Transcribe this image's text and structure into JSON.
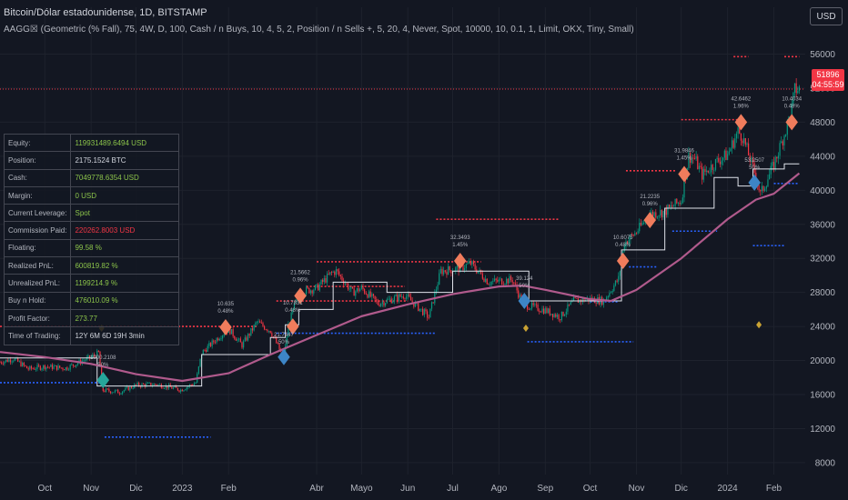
{
  "header": {
    "title": "Bitcoin/Dólar estadounidense, 1D, BITSTAMP",
    "indicator": "AAGG☒ (Geometric (% Fall), 75, 4W, D, 100, Cash / n Buys, 10, 4, 5, 2, Position / n Sells +, 5, 20, 4, Never, Spot, 10000, 10, 0.1, 1, Limit, OKX, Tiny, Small)",
    "currency_button": "USD"
  },
  "price_tag": {
    "price": "51896",
    "countdown": "04:55:59"
  },
  "stats": [
    {
      "label": "Equity:",
      "value": "119931489.6494 USD",
      "color": "#8bc34a"
    },
    {
      "label": "Position:",
      "value": "2175.1524 BTC",
      "color": "#d1d4dc"
    },
    {
      "label": "Cash:",
      "value": "7049778.6354 USD",
      "color": "#8bc34a"
    },
    {
      "label": "Margin:",
      "value": "0 USD",
      "color": "#8bc34a"
    },
    {
      "label": "Current Leverage:",
      "value": "Spot",
      "color": "#8bc34a"
    },
    {
      "label": "Commission Paid:",
      "value": "220262.8003 USD",
      "color": "#f23645"
    },
    {
      "label": "Floating:",
      "value": "99.58 %",
      "color": "#8bc34a"
    },
    {
      "label": "Realized PnL:",
      "value": "600819.82 %",
      "color": "#8bc34a"
    },
    {
      "label": "Unrealized PnL:",
      "value": "1199214.9 %",
      "color": "#8bc34a"
    },
    {
      "label": "Buy n Hold:",
      "value": "476010.09 %",
      "color": "#8bc34a"
    },
    {
      "label": "Profit Factor:",
      "value": "273.77",
      "color": "#8bc34a"
    },
    {
      "label": "Time of Trading:",
      "value": "12Y 6M 6D 19H 3min",
      "color": "#d1d4dc"
    }
  ],
  "colors": {
    "up": "#089981",
    "down": "#f23645",
    "ma": "#b05a8c",
    "step": "#e0e3eb",
    "sell_diamond": "#f07c5c",
    "buy_diamond": "#3d85c6",
    "first_buy_diamond": "#26a69a",
    "small_diamond": "#c9a233",
    "sell_level": "#f23645",
    "buy_level": "#2962ff",
    "grid": "#1e222d",
    "axis_text": "#b2b5be"
  },
  "chart_data": {
    "type": "candlestick",
    "y_axis_ticks": [
      8000,
      12000,
      16000,
      20000,
      24000,
      28000,
      32000,
      36000,
      40000,
      44000,
      48000,
      52000,
      56000
    ],
    "ylim": [
      6600,
      58300
    ],
    "x_axis_labels": [
      {
        "label": "Oct",
        "date": "2022-10-01"
      },
      {
        "label": "Nov",
        "date": "2022-11-01"
      },
      {
        "label": "Dic",
        "date": "2022-12-01"
      },
      {
        "label": "2023",
        "date": "2023-01-01"
      },
      {
        "label": "Feb",
        "date": "2023-02-01"
      },
      {
        "label": "Abr",
        "date": "2023-04-01"
      },
      {
        "label": "Mayo",
        "date": "2023-05-01"
      },
      {
        "label": "Jun",
        "date": "2023-06-01"
      },
      {
        "label": "Jul",
        "date": "2023-07-01"
      },
      {
        "label": "Ago",
        "date": "2023-08-01"
      },
      {
        "label": "Sep",
        "date": "2023-09-01"
      },
      {
        "label": "Oct",
        "date": "2023-10-01"
      },
      {
        "label": "Nov",
        "date": "2023-11-01"
      },
      {
        "label": "Dic",
        "date": "2023-12-01"
      },
      {
        "label": "2024",
        "date": "2024-01-01"
      },
      {
        "label": "Feb",
        "date": "2024-02-01"
      }
    ],
    "close_series": [
      [
        "2022-09-01",
        19800
      ],
      [
        "2022-09-10",
        20200
      ],
      [
        "2022-09-20",
        19000
      ],
      [
        "2022-10-01",
        19300
      ],
      [
        "2022-10-15",
        19100
      ],
      [
        "2022-11-01",
        20400
      ],
      [
        "2022-11-06",
        20900
      ],
      [
        "2022-11-09",
        16500
      ],
      [
        "2022-11-20",
        16300
      ],
      [
        "2022-12-01",
        17100
      ],
      [
        "2022-12-15",
        17200
      ],
      [
        "2022-12-31",
        16550
      ],
      [
        "2023-01-10",
        17400
      ],
      [
        "2023-01-14",
        20900
      ],
      [
        "2023-01-25",
        22700
      ],
      [
        "2023-02-01",
        23700
      ],
      [
        "2023-02-10",
        21800
      ],
      [
        "2023-02-20",
        24500
      ],
      [
        "2023-03-01",
        23500
      ],
      [
        "2023-03-10",
        20200
      ],
      [
        "2023-03-13",
        24100
      ],
      [
        "2023-03-20",
        28000
      ],
      [
        "2023-04-01",
        28500
      ],
      [
        "2023-04-11",
        30300
      ],
      [
        "2023-04-14",
        30500
      ],
      [
        "2023-04-25",
        28000
      ],
      [
        "2023-05-01",
        28500
      ],
      [
        "2023-05-12",
        26700
      ],
      [
        "2023-05-30",
        27700
      ],
      [
        "2023-06-10",
        25900
      ],
      [
        "2023-06-15",
        25100
      ],
      [
        "2023-06-23",
        30500
      ],
      [
        "2023-07-05",
        30800
      ],
      [
        "2023-07-13",
        31400
      ],
      [
        "2023-07-25",
        29200
      ],
      [
        "2023-08-10",
        29500
      ],
      [
        "2023-08-17",
        26600
      ],
      [
        "2023-09-01",
        25900
      ],
      [
        "2023-09-11",
        25100
      ],
      [
        "2023-09-20",
        27000
      ],
      [
        "2023-10-01",
        27200
      ],
      [
        "2023-10-10",
        27000
      ],
      [
        "2023-10-20",
        29600
      ],
      [
        "2023-10-24",
        33800
      ],
      [
        "2023-11-01",
        35100
      ],
      [
        "2023-11-10",
        37200
      ],
      [
        "2023-11-20",
        37500
      ],
      [
        "2023-12-01",
        38800
      ],
      [
        "2023-12-06",
        44000
      ],
      [
        "2023-12-10",
        43700
      ],
      [
        "2023-12-15",
        41800
      ],
      [
        "2023-12-25",
        43400
      ],
      [
        "2024-01-01",
        44200
      ],
      [
        "2024-01-08",
        46900
      ],
      [
        "2024-01-11",
        46300
      ],
      [
        "2024-01-20",
        41600
      ],
      [
        "2024-01-23",
        39500
      ],
      [
        "2024-02-01",
        43000
      ],
      [
        "2024-02-09",
        47100
      ],
      [
        "2024-02-13",
        49700
      ],
      [
        "2024-02-15",
        51800
      ],
      [
        "2024-02-18",
        51900
      ]
    ],
    "ma_series": [
      [
        "2022-09-01",
        21000
      ],
      [
        "2022-10-01",
        20400
      ],
      [
        "2022-11-01",
        19600
      ],
      [
        "2022-12-01",
        18400
      ],
      [
        "2023-01-01",
        17600
      ],
      [
        "2023-02-01",
        18500
      ],
      [
        "2023-03-01",
        20700
      ],
      [
        "2023-04-01",
        23000
      ],
      [
        "2023-05-01",
        25200
      ],
      [
        "2023-06-01",
        26600
      ],
      [
        "2023-07-01",
        27800
      ],
      [
        "2023-08-01",
        28700
      ],
      [
        "2023-08-17",
        28800
      ],
      [
        "2023-09-01",
        28300
      ],
      [
        "2023-10-01",
        27200
      ],
      [
        "2023-10-15",
        27000
      ],
      [
        "2023-11-01",
        28300
      ],
      [
        "2023-12-01",
        32000
      ],
      [
        "2024-01-01",
        36600
      ],
      [
        "2024-01-20",
        38900
      ],
      [
        "2024-02-01",
        39600
      ],
      [
        "2024-02-18",
        42000
      ]
    ],
    "step_series": [
      [
        "2022-09-01",
        20300
      ],
      [
        "2022-11-05",
        20300
      ],
      [
        "2022-11-05",
        17000
      ],
      [
        "2023-01-14",
        17000
      ],
      [
        "2023-01-14",
        20700
      ],
      [
        "2023-03-01",
        20700
      ],
      [
        "2023-03-01",
        22700
      ],
      [
        "2023-03-11",
        22700
      ],
      [
        "2023-03-11",
        24200
      ],
      [
        "2023-03-20",
        24200
      ],
      [
        "2023-03-20",
        26000
      ],
      [
        "2023-04-12",
        26000
      ],
      [
        "2023-04-12",
        29200
      ],
      [
        "2023-05-18",
        29200
      ],
      [
        "2023-05-18",
        28000
      ],
      [
        "2023-07-01",
        28000
      ],
      [
        "2023-07-01",
        30500
      ],
      [
        "2023-08-21",
        30500
      ],
      [
        "2023-08-21",
        27000
      ],
      [
        "2023-10-22",
        27000
      ],
      [
        "2023-10-22",
        33000
      ],
      [
        "2023-11-20",
        33000
      ],
      [
        "2023-11-20",
        37900
      ],
      [
        "2023-12-23",
        37900
      ],
      [
        "2023-12-23",
        41500
      ],
      [
        "2024-01-08",
        41500
      ],
      [
        "2024-01-08",
        40500
      ],
      [
        "2024-01-18",
        40500
      ],
      [
        "2024-01-18",
        42500
      ],
      [
        "2024-02-08",
        42500
      ],
      [
        "2024-02-08",
        43100
      ],
      [
        "2024-02-18",
        43100
      ]
    ],
    "sell_levels": [
      {
        "start": "2022-09-01",
        "end": "2023-02-20",
        "price": 24000
      },
      {
        "start": "2023-03-05",
        "end": "2023-06-01",
        "price": 27000
      },
      {
        "start": "2023-03-25",
        "end": "2023-05-30",
        "price": 28700
      },
      {
        "start": "2023-04-01",
        "end": "2023-07-20",
        "price": 31600
      },
      {
        "start": "2023-06-20",
        "end": "2023-09-10",
        "price": 36600
      },
      {
        "start": "2023-10-25",
        "end": "2023-11-28",
        "price": 42300
      },
      {
        "start": "2023-12-01",
        "end": "2024-01-12",
        "price": 48300
      },
      {
        "start": "2024-01-05",
        "end": "2024-01-15",
        "price": 55700
      },
      {
        "start": "2024-02-08",
        "end": "2024-02-18",
        "price": 55700
      }
    ],
    "buy_levels": [
      {
        "start": "2022-09-01",
        "end": "2022-11-08",
        "price": 17400
      },
      {
        "start": "2022-11-10",
        "end": "2023-01-20",
        "price": 11000
      },
      {
        "start": "2023-03-05",
        "end": "2023-06-20",
        "price": 23200
      },
      {
        "start": "2023-08-20",
        "end": "2023-10-30",
        "price": 22200
      },
      {
        "start": "2023-10-01",
        "end": "2023-10-20",
        "price": 26900
      },
      {
        "start": "2023-10-27",
        "end": "2023-11-15",
        "price": 31000
      },
      {
        "start": "2023-11-25",
        "end": "2023-12-25",
        "price": 35200
      },
      {
        "start": "2024-01-18",
        "end": "2024-02-08",
        "price": 33500
      },
      {
        "start": "2024-02-01",
        "end": "2024-02-18",
        "price": 40800
      }
    ],
    "sells": [
      {
        "date": "2023-01-30",
        "price": 23900,
        "label1": "10.635",
        "label2": "0.48%"
      },
      {
        "date": "2023-03-21",
        "price": 27600,
        "label1": "21.5662",
        "label2": "0.96%"
      },
      {
        "date": "2023-03-16",
        "price": 24000,
        "label1": "10.7831",
        "label2": "0.48%"
      },
      {
        "date": "2023-07-06",
        "price": 31700,
        "label1": "32.3493",
        "label2": "1.45%"
      },
      {
        "date": "2023-10-23",
        "price": 31700,
        "label1": "10.6075",
        "label2": "0.48%"
      },
      {
        "date": "2023-11-10",
        "price": 36500,
        "label1": "21.2235",
        "label2": "0.96%"
      },
      {
        "date": "2023-12-03",
        "price": 41900,
        "label1": "31.9846",
        "label2": "1.45%"
      },
      {
        "date": "2024-01-10",
        "price": 48000,
        "label1": "42.6462",
        "label2": "1.96%"
      },
      {
        "date": "2024-02-13",
        "price": 48000,
        "label1": "10.4034",
        "label2": "0.48%"
      }
    ],
    "buys": [
      {
        "date": "2022-11-09",
        "price": 17700,
        "label1": "1000.2108",
        "label2": "50%",
        "first": true
      },
      {
        "date": "2023-03-10",
        "price": 20400,
        "label1": "21.7447",
        "label2": "50%"
      },
      {
        "date": "2023-08-18",
        "price": 27000,
        "label1": "39.124",
        "label2": "50%"
      },
      {
        "date": "2024-01-19",
        "price": 40900,
        "label1": "53.2507",
        "label2": "50%"
      }
    ],
    "small_markers": [
      {
        "date": "2022-11-08",
        "price": 23800
      },
      {
        "date": "2023-08-19",
        "price": 23800
      },
      {
        "date": "2024-01-22",
        "price": 24200
      }
    ],
    "current_price": 51896
  }
}
